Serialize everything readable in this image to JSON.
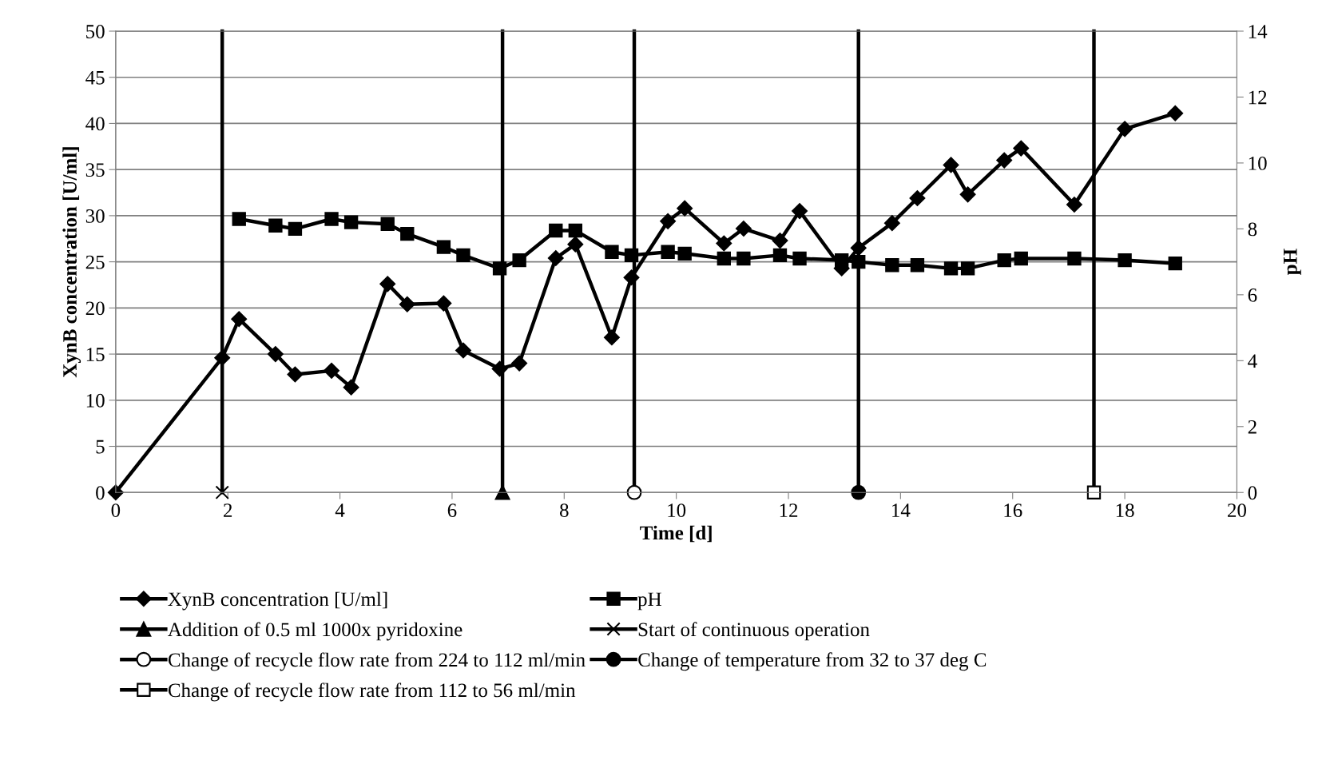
{
  "chart_data": {
    "type": "line",
    "xlabel": "Time [d]",
    "ylabel": "XynB concentration [U/ml]",
    "y2label": "pH",
    "xlim": [
      0,
      20
    ],
    "xticks": [
      0,
      2,
      4,
      6,
      8,
      10,
      12,
      14,
      16,
      18,
      20
    ],
    "ylim": [
      0,
      50
    ],
    "yticks": [
      0,
      5,
      10,
      15,
      20,
      25,
      30,
      35,
      40,
      45,
      50
    ],
    "y2lim": [
      0,
      14
    ],
    "y2ticks": [
      0,
      2,
      4,
      6,
      8,
      10,
      12,
      14
    ],
    "grid": "y",
    "legend": "bottom",
    "line_style": "solid",
    "series": [
      {
        "name": "XynB concentration [U/ml]",
        "color": "#000000",
        "marker": "diamond",
        "x": [
          0,
          1.9,
          2.2,
          2.85,
          3.2,
          3.85,
          4.2,
          4.85,
          5.2,
          5.85,
          6.2,
          6.85,
          7.2,
          7.85,
          8.2,
          8.85,
          9.2,
          9.85,
          10.15,
          10.85,
          11.2,
          11.85,
          12.2,
          12.95,
          13.25,
          13.85,
          14.3,
          14.9,
          15.2,
          15.85,
          16.15,
          17.1,
          18,
          18.9
        ],
        "values": [
          0,
          14.6,
          18.8,
          15.0,
          12.8,
          13.2,
          11.4,
          22.6,
          20.4,
          20.5,
          15.4,
          13.4,
          14.0,
          25.4,
          26.9,
          16.8,
          23.3,
          29.4,
          30.8,
          27.0,
          28.6,
          27.3,
          30.5,
          24.3,
          26.5,
          29.2,
          31.9,
          35.5,
          32.3,
          36.0,
          37.3,
          31.2,
          39.4,
          41.1
        ]
      },
      {
        "name": "pH",
        "color": "#000000",
        "marker": "square",
        "axis": "y2",
        "x": [
          2.2,
          2.85,
          3.2,
          3.85,
          4.2,
          4.85,
          5.2,
          5.85,
          6.2,
          6.85,
          7.2,
          7.85,
          8.2,
          8.85,
          9.2,
          9.85,
          10.15,
          10.85,
          11.2,
          11.85,
          12.2,
          12.95,
          13.25,
          13.85,
          14.3,
          14.9,
          15.2,
          15.85,
          16.15,
          17.1,
          18,
          18.9
        ],
        "values": [
          8.3,
          8.1,
          8.0,
          8.3,
          8.2,
          8.15,
          7.85,
          7.45,
          7.2,
          6.8,
          7.05,
          7.95,
          7.95,
          7.3,
          7.2,
          7.3,
          7.25,
          7.1,
          7.1,
          7.2,
          7.1,
          7.05,
          7.0,
          6.9,
          6.9,
          6.8,
          6.8,
          7.05,
          7.1,
          7.1,
          7.05,
          6.95
        ]
      },
      {
        "name": "Addition of 0.5 ml 1000x pyridoxine",
        "color": "#000000",
        "marker": "triangle",
        "x": [
          6.9,
          6.9
        ],
        "values": [
          0,
          50
        ]
      },
      {
        "name": "Start of continuous operation",
        "color": "#000000",
        "marker": "cross",
        "x": [
          1.9,
          1.9
        ],
        "values": [
          0,
          50
        ]
      },
      {
        "name": "Change of recycle flow rate from 224 to 112 ml/min",
        "color": "#000000",
        "marker": "circle",
        "x": [
          9.25,
          9.25
        ],
        "values": [
          0,
          50
        ]
      },
      {
        "name": "Change of temperature from 32 to 37 deg C",
        "color": "#000000",
        "marker": "circle",
        "x": [
          13.25,
          13.25
        ],
        "values": [
          0,
          50
        ]
      },
      {
        "name": "Change of recycle flow rate from 112 to 56 ml/min",
        "color": "#000000",
        "marker": "square",
        "x": [
          17.45,
          17.45
        ],
        "values": [
          0,
          50
        ]
      }
    ]
  }
}
